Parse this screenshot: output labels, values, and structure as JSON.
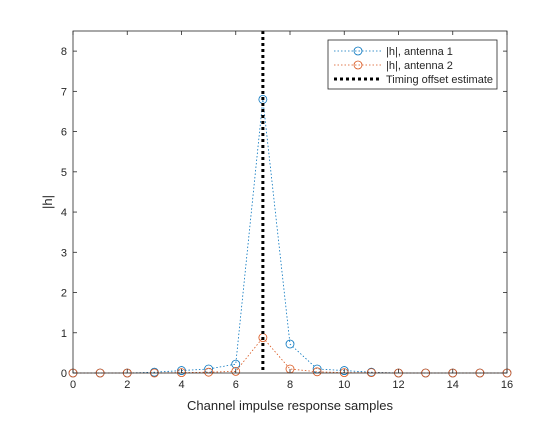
{
  "chart_data": {
    "type": "line",
    "xlabel": "Channel impulse response samples",
    "ylabel": "|h|",
    "xlim": [
      0,
      16
    ],
    "ylim": [
      0,
      8.5
    ],
    "xticks": [
      0,
      2,
      4,
      6,
      8,
      10,
      12,
      14,
      16
    ],
    "yticks": [
      0,
      1,
      2,
      3,
      4,
      5,
      6,
      7,
      8
    ],
    "grid": false,
    "legend_position": "top-right",
    "x": [
      0,
      1,
      2,
      3,
      4,
      5,
      6,
      7,
      8,
      9,
      10,
      11,
      12,
      13,
      14,
      15,
      16
    ],
    "series": [
      {
        "name": "|h|, antenna 1",
        "color": "#0072BD",
        "line_style": "dotted",
        "marker": "circle",
        "values": [
          0.0,
          0.0,
          0.0,
          0.02,
          0.06,
          0.1,
          0.22,
          6.8,
          0.72,
          0.1,
          0.06,
          0.02,
          0.0,
          0.0,
          0.0,
          0.0,
          0.0
        ]
      },
      {
        "name": "|h|, antenna 2",
        "color": "#D95319",
        "line_style": "dotted",
        "marker": "circle",
        "values": [
          0.0,
          0.0,
          0.0,
          0.0,
          0.01,
          0.02,
          0.04,
          0.88,
          0.1,
          0.03,
          0.01,
          0.01,
          0.0,
          0.0,
          0.0,
          0.0,
          0.0
        ]
      }
    ],
    "vertical_line": {
      "name": "Timing offset estimate",
      "x": 7,
      "color": "#000000",
      "line_style": "dotted-thick"
    }
  }
}
